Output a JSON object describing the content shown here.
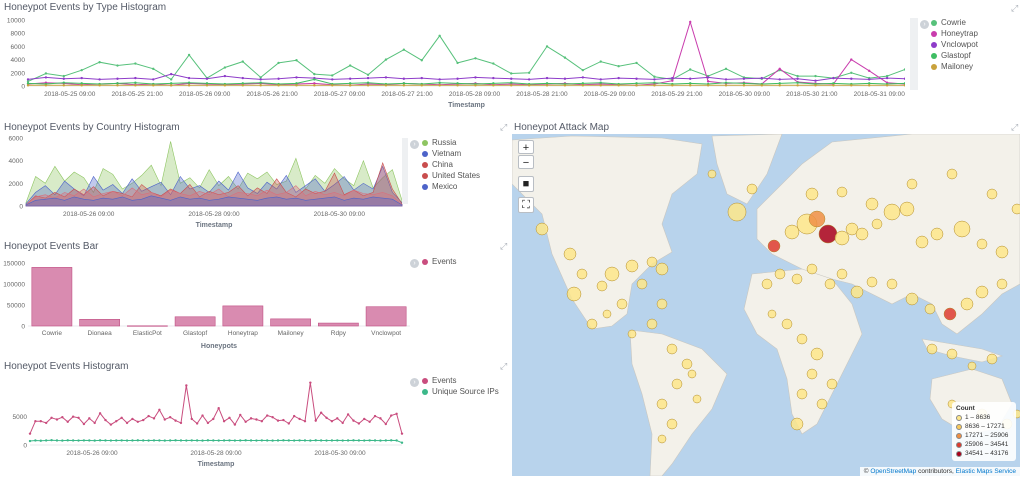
{
  "panels": {
    "type_hist": {
      "title": "Honeypot Events by Type Histogram",
      "xlabel": "Timestamp",
      "yticks": [
        "10000",
        "8000",
        "6000",
        "4000",
        "2000",
        "0"
      ],
      "xticks": [
        "2018-05-25 09:00",
        "2018-05-25 21:00",
        "2018-05-26 09:00",
        "2018-05-26 21:00",
        "2018-05-27 09:00",
        "2018-05-27 21:00",
        "2018-05-28 09:00",
        "2018-05-28 21:00",
        "2018-05-29 09:00",
        "2018-05-29 21:00",
        "2018-05-30 09:00",
        "2018-05-30 21:00",
        "2018-05-31 09:00"
      ],
      "legend": [
        {
          "label": "Cowrie",
          "color": "#57c17b"
        },
        {
          "label": "Honeytrap",
          "color": "#c93cad"
        },
        {
          "label": "Vnclowpot",
          "color": "#8e3cc9"
        },
        {
          "label": "Glastopf",
          "color": "#3fbd63"
        },
        {
          "label": "Mailoney",
          "color": "#c9a23c"
        }
      ]
    },
    "country_hist": {
      "title": "Honeypot Events by Country Histogram",
      "xlabel": "Timestamp",
      "yticks": [
        "6000",
        "4000",
        "2000",
        "0"
      ],
      "xticks": [
        "2018-05-26 09:00",
        "2018-05-28 09:00",
        "2018-05-30 09:00"
      ],
      "legend": [
        {
          "label": "Russia",
          "color": "#8ec562"
        },
        {
          "label": "Vietnam",
          "color": "#4d63c9"
        },
        {
          "label": "China",
          "color": "#c94d4d"
        },
        {
          "label": "United States",
          "color": "#c94d4d"
        },
        {
          "label": "Mexico",
          "color": "#4d63c9"
        }
      ]
    },
    "events_bar": {
      "title": "Honeypot Events Bar",
      "xlabel": "Honeypots",
      "yticks": [
        "150000",
        "100000",
        "50000",
        "0"
      ],
      "legend": [
        {
          "label": "Events",
          "color": "#c94d7e"
        }
      ]
    },
    "events_hist": {
      "title": "Honeypot Events Histogram",
      "xlabel": "Timestamp",
      "yticks": [
        "5000",
        "0"
      ],
      "xticks": [
        "2018-05-26 09:00",
        "2018-05-28 09:00",
        "2018-05-30 09:00"
      ],
      "legend": [
        {
          "label": "Events",
          "color": "#c94d7e"
        },
        {
          "label": "Unique Source IPs",
          "color": "#3cb88a"
        }
      ]
    },
    "attack_map": {
      "title": "Honeypot Attack Map",
      "controls": [
        "+",
        "−",
        "■",
        "⛶"
      ],
      "legend_title": "Count",
      "legend": [
        {
          "label": "1 – 8636",
          "color": "#fde68a"
        },
        {
          "label": "8636 – 17271",
          "color": "#f7c85a"
        },
        {
          "label": "17271 – 25906",
          "color": "#ef8f44"
        },
        {
          "label": "25906 – 34541",
          "color": "#dd3b2f"
        },
        {
          "label": "34541 – 43176",
          "color": "#a8001b"
        }
      ],
      "attribution_prefix": "©",
      "attribution_osm": "OpenStreetMap",
      "attribution_mid": "contributors,",
      "attribution_ems": "Elastic Maps Service"
    }
  },
  "chart_data": [
    {
      "type": "line",
      "title": "Honeypot Events by Type Histogram",
      "xlabel": "Timestamp",
      "ylim": [
        0,
        10000
      ],
      "series": [
        {
          "name": "Cowrie",
          "values": [
            700,
            1900,
            1500,
            2400,
            3600,
            3100,
            3400,
            2600,
            1000,
            4700,
            1200,
            2800,
            3700,
            1300,
            3500,
            3900,
            1800,
            1600,
            3100,
            1700,
            4000,
            5500,
            3900,
            7600,
            3500,
            4200,
            3400,
            1900,
            2000,
            6000,
            4300,
            2400,
            3700,
            3000,
            3500,
            1400,
            1000,
            2500,
            1500,
            2600,
            1300,
            1100,
            2400,
            1500,
            1500,
            1200,
            2000,
            1200,
            1500,
            2500
          ]
        },
        {
          "name": "Honeytrap",
          "values": [
            300,
            500,
            400,
            200,
            300,
            400,
            200,
            300,
            100,
            400,
            300,
            200,
            300,
            400,
            200,
            300,
            400,
            200,
            100,
            300,
            200,
            400,
            300,
            200,
            300,
            400,
            200,
            300,
            200,
            300,
            400,
            200,
            300,
            200,
            100,
            300,
            800,
            9700,
            700,
            400,
            500,
            300,
            2600,
            600,
            400,
            300,
            4000,
            2300,
            500,
            300
          ]
        },
        {
          "name": "Vnclowpot",
          "values": [
            1000,
            1300,
            1100,
            1200,
            1000,
            1100,
            1200,
            1000,
            1800,
            1200,
            1100,
            1500,
            1200,
            1000,
            1100,
            1300,
            1200,
            1000,
            1100,
            1200,
            1300,
            1100,
            1200,
            1000,
            1100,
            1300,
            1200,
            1100,
            1000,
            1200,
            1100,
            1300,
            1000,
            1200,
            1100,
            1000,
            1200,
            1100,
            1300,
            1000,
            1100,
            1200,
            1000,
            1100,
            800,
            1200,
            1100,
            1000,
            1200,
            1100
          ]
        },
        {
          "name": "Glastopf",
          "values": [
            400,
            300,
            500,
            400,
            300,
            400,
            500,
            300,
            400,
            500,
            400,
            300,
            400,
            500,
            300,
            400,
            1000,
            300,
            400,
            500,
            300,
            400,
            300,
            500,
            400,
            300,
            400,
            500,
            300,
            400,
            300,
            400,
            500,
            300,
            400,
            500,
            300,
            400,
            300,
            500,
            400,
            300,
            400,
            500,
            300,
            400,
            300,
            400,
            300,
            400
          ]
        },
        {
          "name": "Mailoney",
          "values": [
            100,
            100,
            100,
            100,
            100,
            100,
            100,
            100,
            100,
            100,
            100,
            100,
            100,
            100,
            100,
            100,
            100,
            100,
            100,
            100,
            100,
            100,
            100,
            100,
            100,
            100,
            100,
            100,
            100,
            100,
            100,
            100,
            100,
            100,
            100,
            100,
            100,
            100,
            100,
            100,
            100,
            100,
            100,
            100,
            100,
            100,
            100,
            100,
            100,
            100
          ]
        }
      ]
    },
    {
      "type": "area",
      "title": "Honeypot Events by Country Histogram",
      "xlabel": "Timestamp",
      "ylim": [
        0,
        6000
      ],
      "series": [
        {
          "name": "Russia",
          "values": [
            300,
            2600,
            2000,
            3500,
            2200,
            3000,
            2500,
            1200,
            3300,
            2800,
            1500,
            2000,
            2700,
            3600,
            1800,
            5700,
            2000,
            2500,
            1600,
            3200,
            1800,
            2600,
            1500,
            2900,
            2400,
            3000,
            1900,
            2200,
            4200,
            1500,
            2700,
            2000,
            3300,
            2400,
            1800,
            4000,
            1600,
            2500,
            3200,
            500
          ]
        },
        {
          "name": "Vietnam",
          "values": [
            200,
            1200,
            1800,
            1000,
            2200,
            1500,
            900,
            2600,
            1400,
            1900,
            1100,
            2400,
            1300,
            1700,
            2100,
            1000,
            2600,
            1500,
            1800,
            1200,
            2200,
            1400,
            3000,
            1600,
            1100,
            2100,
            1500,
            2700,
            1200,
            1800,
            2400,
            1300,
            1900,
            2600,
            1400,
            2000,
            1500,
            3500,
            1200,
            300
          ]
        },
        {
          "name": "China",
          "values": [
            100,
            900,
            700,
            1200,
            800,
            1500,
            1000,
            1700,
            900,
            1300,
            1100,
            800,
            1900,
            1200,
            900,
            1500,
            1100,
            1900,
            800,
            1300,
            1000,
            1200,
            1800,
            900,
            1600,
            1100,
            2400,
            1200,
            800,
            1500,
            1100,
            1300,
            2900,
            1000,
            1400,
            900,
            1200,
            3800,
            1500,
            200
          ]
        },
        {
          "name": "United States",
          "values": [
            100,
            800,
            1000,
            700,
            1200,
            900,
            1500,
            800,
            1100,
            1300,
            900,
            1600,
            1000,
            1200,
            800,
            1400,
            1100,
            900,
            1300,
            1000,
            1500,
            800,
            1200,
            1100,
            900,
            1400,
            1000,
            1200,
            1800,
            900,
            1300,
            1000,
            1200,
            900,
            1400,
            1100,
            1000,
            1200,
            900,
            100
          ]
        },
        {
          "name": "Mexico",
          "values": [
            100,
            500,
            600,
            700,
            500,
            800,
            600,
            500,
            700,
            600,
            800,
            500,
            600,
            900,
            700,
            500,
            800,
            600,
            700,
            500,
            600,
            800,
            700,
            600,
            500,
            700,
            800,
            600,
            700,
            500,
            600,
            700,
            800,
            500,
            700,
            600,
            800,
            700,
            600,
            100
          ]
        }
      ]
    },
    {
      "type": "bar",
      "title": "Honeypot Events Bar",
      "xlabel": "Honeypots",
      "categories": [
        "Cowrie",
        "Dionaea",
        "ElasticPot",
        "Glastopf",
        "Honeytrap",
        "Mailoney",
        "Rdpy",
        "Vnclowpot"
      ],
      "values": [
        140000,
        16000,
        500,
        22000,
        48000,
        17000,
        7000,
        46000
      ],
      "ylim": [
        0,
        160000
      ]
    },
    {
      "type": "line",
      "title": "Honeypot Events Histogram",
      "xlabel": "Timestamp",
      "ylim": [
        0,
        12000
      ],
      "series": [
        {
          "name": "Events",
          "values": [
            2000,
            4200,
            4200,
            3900,
            4800,
            4500,
            4900,
            4100,
            5000,
            4800,
            3700,
            4700,
            3900,
            5600,
            4400,
            3600,
            4200,
            4800,
            3900,
            4600,
            4100,
            4400,
            5100,
            4700,
            6200,
            4500,
            4900,
            4300,
            3900,
            10500,
            4600,
            3800,
            5200,
            3900,
            4600,
            6500,
            4200,
            4800,
            3600,
            5300,
            4100,
            4700,
            4500,
            4200,
            5200,
            4900,
            4300,
            4400,
            3800,
            5100,
            4600,
            4200,
            11000,
            4300,
            5700,
            4800,
            4200,
            4700,
            3900,
            5400,
            4300,
            3800,
            4600,
            4100,
            5100,
            4700,
            3700,
            5200,
            5500,
            2000
          ]
        },
        {
          "name": "Unique Source IPs",
          "values": [
            700,
            800,
            750,
            800,
            850,
            800,
            780,
            820,
            800,
            790,
            810,
            800,
            780,
            820,
            800,
            790,
            800,
            810,
            790,
            800,
            820,
            800,
            790,
            810,
            800,
            780,
            800,
            820,
            800,
            790,
            810,
            800,
            780,
            820,
            800,
            790,
            800,
            810,
            790,
            800,
            820,
            800,
            790,
            810,
            800,
            780,
            800,
            820,
            800,
            790,
            810,
            800,
            780,
            820,
            800,
            790,
            800,
            810,
            790,
            800,
            820,
            800,
            790,
            810,
            800,
            780,
            800,
            820,
            800,
            400
          ]
        }
      ]
    }
  ]
}
